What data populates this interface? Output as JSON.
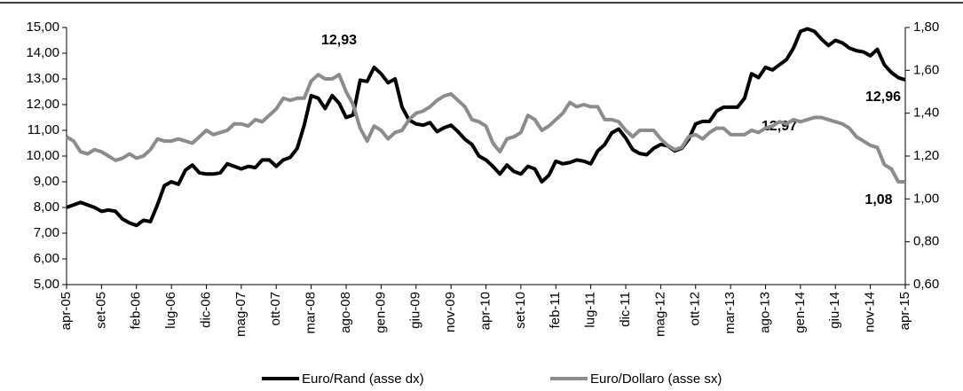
{
  "chart_data": {
    "type": "line",
    "categories": [
      "apr-05",
      null,
      null,
      null,
      null,
      "set-05",
      null,
      null,
      null,
      null,
      "feb-06",
      null,
      null,
      null,
      null,
      "lug-06",
      null,
      null,
      null,
      null,
      "dic-06",
      null,
      null,
      null,
      null,
      "mag-07",
      null,
      null,
      null,
      null,
      "ott-07",
      null,
      null,
      null,
      null,
      "mar-08",
      null,
      null,
      null,
      null,
      "ago-08",
      null,
      null,
      null,
      null,
      "gen-09",
      null,
      null,
      null,
      null,
      "giu-09",
      null,
      null,
      null,
      null,
      "nov-09",
      null,
      null,
      null,
      null,
      "apr-10",
      null,
      null,
      null,
      null,
      "set-10",
      null,
      null,
      null,
      null,
      "feb-11",
      null,
      null,
      null,
      null,
      "lug-11",
      null,
      null,
      null,
      null,
      "dic-11",
      null,
      null,
      null,
      null,
      "mag-12",
      null,
      null,
      null,
      null,
      "ott-12",
      null,
      null,
      null,
      null,
      "mar-13",
      null,
      null,
      null,
      null,
      "ago-13",
      null,
      null,
      null,
      null,
      "gen-14",
      null,
      null,
      null,
      null,
      "giu-14",
      null,
      null,
      null,
      null,
      "nov-14",
      null,
      null,
      null,
      null,
      "apr-15"
    ],
    "series": [
      {
        "name": "Euro/Rand (asse dx)",
        "color": "#000000",
        "values": [
          8.0,
          8.1,
          8.2,
          8.1,
          8.0,
          7.85,
          7.9,
          7.85,
          7.55,
          7.4,
          7.3,
          7.5,
          7.45,
          8.1,
          8.85,
          9.0,
          8.9,
          9.45,
          9.65,
          9.35,
          9.3,
          9.3,
          9.35,
          9.7,
          9.6,
          9.5,
          9.6,
          9.55,
          9.85,
          9.85,
          9.6,
          9.85,
          9.95,
          10.3,
          11.2,
          12.35,
          12.25,
          11.85,
          12.35,
          12.05,
          11.5,
          11.6,
          12.95,
          12.9,
          13.45,
          13.2,
          12.85,
          13.0,
          11.9,
          11.4,
          11.25,
          11.2,
          11.3,
          10.95,
          11.1,
          11.2,
          10.95,
          10.65,
          10.45,
          10.0,
          9.85,
          9.6,
          9.3,
          9.65,
          9.4,
          9.3,
          9.6,
          9.5,
          9.0,
          9.25,
          9.8,
          9.7,
          9.75,
          9.85,
          9.8,
          9.7,
          10.2,
          10.45,
          10.9,
          11.05,
          10.7,
          10.25,
          10.1,
          10.05,
          10.3,
          10.45,
          10.4,
          10.2,
          10.3,
          10.65,
          11.25,
          11.35,
          11.35,
          11.75,
          11.9,
          11.9,
          11.9,
          12.25,
          13.2,
          13.05,
          13.45,
          13.35,
          13.55,
          13.75,
          14.2,
          14.85,
          14.95,
          14.85,
          14.55,
          14.3,
          14.5,
          14.4,
          14.2,
          14.1,
          14.05,
          13.9,
          14.15,
          13.55,
          13.25,
          13.05,
          12.96
        ]
      },
      {
        "name": "Euro/Dollaro (asse sx)",
        "color": "#8c8c8c",
        "axis": "y2",
        "values": [
          1.29,
          1.27,
          1.22,
          1.21,
          1.23,
          1.22,
          1.2,
          1.18,
          1.19,
          1.21,
          1.19,
          1.2,
          1.23,
          1.28,
          1.27,
          1.27,
          1.28,
          1.27,
          1.26,
          1.29,
          1.32,
          1.3,
          1.31,
          1.32,
          1.35,
          1.35,
          1.34,
          1.37,
          1.36,
          1.39,
          1.42,
          1.47,
          1.46,
          1.47,
          1.47,
          1.55,
          1.58,
          1.56,
          1.56,
          1.58,
          1.5,
          1.44,
          1.33,
          1.27,
          1.34,
          1.32,
          1.28,
          1.31,
          1.32,
          1.37,
          1.4,
          1.41,
          1.43,
          1.46,
          1.48,
          1.49,
          1.46,
          1.43,
          1.37,
          1.36,
          1.34,
          1.26,
          1.22,
          1.28,
          1.29,
          1.31,
          1.39,
          1.37,
          1.32,
          1.34,
          1.37,
          1.4,
          1.45,
          1.43,
          1.44,
          1.43,
          1.43,
          1.37,
          1.37,
          1.36,
          1.32,
          1.29,
          1.32,
          1.32,
          1.32,
          1.28,
          1.25,
          1.23,
          1.24,
          1.29,
          1.3,
          1.28,
          1.31,
          1.33,
          1.33,
          1.3,
          1.3,
          1.3,
          1.32,
          1.31,
          1.33,
          1.34,
          1.36,
          1.35,
          1.37,
          1.36,
          1.37,
          1.38,
          1.38,
          1.37,
          1.36,
          1.35,
          1.33,
          1.29,
          1.27,
          1.25,
          1.24,
          1.16,
          1.14,
          1.08,
          1.08
        ]
      }
    ],
    "ylim": [
      5,
      15
    ],
    "yticks": [
      {
        "value": 5,
        "label": "5,00"
      },
      {
        "value": 6,
        "label": "6,00"
      },
      {
        "value": 7,
        "label": "7,00"
      },
      {
        "value": 8,
        "label": "8,00"
      },
      {
        "value": 9,
        "label": "9,00"
      },
      {
        "value": 10,
        "label": "10,00"
      },
      {
        "value": 11,
        "label": "11,00"
      },
      {
        "value": 12,
        "label": "12,00"
      },
      {
        "value": 13,
        "label": "13,00"
      },
      {
        "value": 14,
        "label": "14,00"
      },
      {
        "value": 15,
        "label": "15,00"
      }
    ],
    "y2lim": [
      0.6,
      1.8
    ],
    "y2ticks": [
      {
        "value": 0.6,
        "label": "0,60"
      },
      {
        "value": 0.8,
        "label": "0,80"
      },
      {
        "value": 1.0,
        "label": "1,00"
      },
      {
        "value": 1.2,
        "label": "1,20"
      },
      {
        "value": 1.4,
        "label": "1,40"
      },
      {
        "value": 1.6,
        "label": "1,60"
      },
      {
        "value": 1.8,
        "label": "1,80"
      }
    ],
    "annotations": [
      "12,93",
      "12,97",
      "12,96",
      "1,08"
    ],
    "grid": false,
    "legend": "bottom"
  }
}
